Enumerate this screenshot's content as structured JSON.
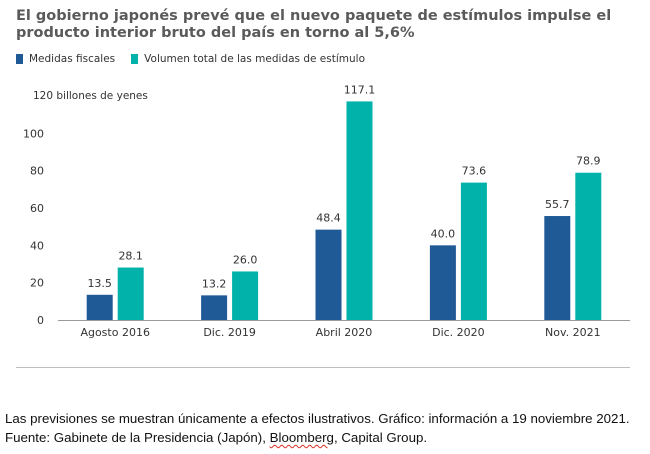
{
  "chart_data": {
    "type": "bar",
    "title": "El gobierno japonés prevé que el nuevo paquete de estímulos impulse el producto interior bruto del país en torno al 5,6%",
    "ylabel": "120 billones de yenes",
    "categories": [
      "Agosto 2016",
      "Dic. 2019",
      "Abril 2020",
      "Dic. 2020",
      "Nov. 2021"
    ],
    "series": [
      {
        "name": "Medidas fiscales",
        "color": "#1f5a96",
        "values": [
          13.5,
          13.2,
          48.4,
          40.0,
          55.7
        ],
        "labels": [
          "13.5",
          "13.2",
          "48.4",
          "40.0",
          "55.7"
        ]
      },
      {
        "name": "Volumen total de las medidas de estímulo",
        "color": "#00b2a9",
        "values": [
          28.1,
          26.0,
          117.1,
          73.6,
          78.9
        ],
        "labels": [
          "28.1",
          "26.0",
          "117.1",
          "73.6",
          "78.9"
        ]
      }
    ],
    "yticks": [
      "0",
      "20",
      "40",
      "60",
      "80",
      "100"
    ],
    "ylim": [
      0,
      120
    ],
    "grid": false,
    "legend": "top-left"
  },
  "footnote": {
    "line1": "Las previsiones se muestran únicamente a  efectos ilustrativos. Gráfico: información a 19 noviembre 2021.",
    "line2_prefix": "Fuente: Gabinete de la Presidencia (Japón), ",
    "line2_flagged": "Bloomberg",
    "line2_suffix": ", Capital Group."
  }
}
